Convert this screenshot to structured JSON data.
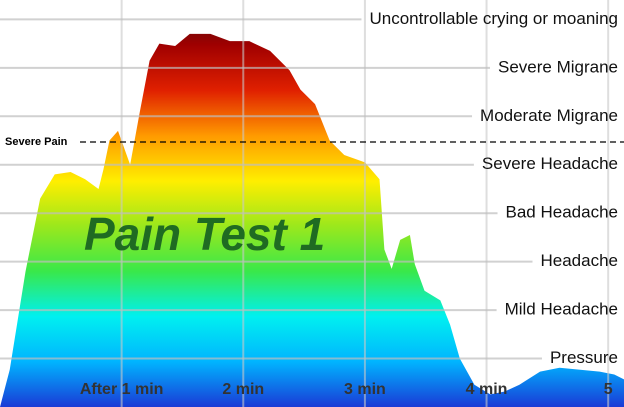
{
  "chart_data": {
    "type": "area",
    "title": "Pain Test 1",
    "x": [
      0,
      0.08,
      0.21,
      0.33,
      0.45,
      0.58,
      0.7,
      0.81,
      0.85,
      0.9,
      0.97,
      1.02,
      1.07,
      1.15,
      1.23,
      1.31,
      1.44,
      1.56,
      1.73,
      1.89,
      2.05,
      2.22,
      2.38,
      2.47,
      2.59,
      2.71,
      2.83,
      3.0,
      3.12,
      3.16,
      3.22,
      3.29,
      3.37,
      3.41,
      3.49,
      3.62,
      3.7,
      3.78,
      3.9,
      4.03,
      4.15,
      4.27,
      4.44,
      4.6,
      4.77,
      4.93,
      5.05,
      5.13
    ],
    "values": [
      0,
      0.77,
      2.8,
      4.3,
      4.8,
      4.85,
      4.7,
      4.5,
      4.9,
      5.5,
      5.7,
      5.35,
      5.0,
      6.1,
      7.15,
      7.5,
      7.45,
      7.7,
      7.7,
      7.55,
      7.55,
      7.35,
      6.95,
      6.55,
      6.25,
      5.5,
      5.2,
      5.05,
      4.7,
      3.25,
      2.85,
      3.45,
      3.55,
      2.95,
      2.4,
      2.2,
      1.7,
      1.0,
      0.46,
      0.26,
      0.32,
      0.46,
      0.73,
      0.81,
      0.77,
      0.73,
      0.67,
      0.57
    ],
    "colors": [
      "#1a3ad6",
      "#00b4ff",
      "#00f0f0",
      "#39e84a",
      "#9be81c",
      "#ffee00",
      "#ff9a00",
      "#e02000",
      "#a00000",
      "#3a1010"
    ],
    "xlim": [
      0,
      5.13
    ],
    "ylim": [
      0,
      8.4
    ],
    "xticks": [
      {
        "value": 1,
        "label": "After 1 min"
      },
      {
        "value": 2,
        "label": "2 min"
      },
      {
        "value": 3,
        "label": "3 min"
      },
      {
        "value": 4,
        "label": "4 min"
      },
      5
    ],
    "yticks": [
      {
        "value": 1,
        "label": "Pressure"
      },
      {
        "value": 2,
        "label": "Mild Headache"
      },
      {
        "value": 3,
        "label": "Headache"
      },
      {
        "value": 4,
        "label": "Bad Headache"
      },
      {
        "value": 5,
        "label": "Severe Headache"
      },
      {
        "value": 6,
        "label": "Moderate Migrane"
      },
      {
        "value": 7,
        "label": "Severe Migrane"
      },
      {
        "value": 8,
        "label": "Uncontrollable crying or moaning"
      }
    ],
    "reference_lines": [
      {
        "label": "Severe Pain",
        "value": 5.47
      }
    ],
    "grid": true
  }
}
